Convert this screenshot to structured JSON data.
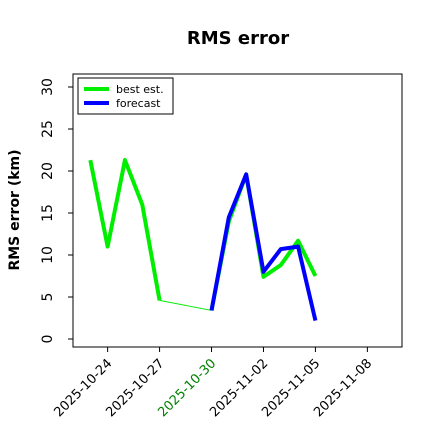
{
  "chart_data": {
    "type": "line",
    "title": "RMS error",
    "ylabel": "RMS error (km)",
    "xlabel": "",
    "ylim": [
      0,
      30
    ],
    "yticks": [
      0,
      5,
      10,
      15,
      20,
      25,
      30
    ],
    "xlim": [
      "2025-10-22",
      "2025-11-10"
    ],
    "xticks": [
      "2025-10-24",
      "2025-10-27",
      "2025-10-30",
      "2025-11-02",
      "2025-11-05",
      "2025-11-08"
    ],
    "highlight_tick": "2025-10-30",
    "highlight_color": "#008000",
    "grid": false,
    "legend_position": "top-left",
    "series": [
      {
        "name": "best est.",
        "color": "#00ee00",
        "points": [
          {
            "x": "2025-10-23",
            "y": 21.3
          },
          {
            "x": "2025-10-24",
            "y": 11.0
          },
          {
            "x": "2025-10-25",
            "y": 21.3
          },
          {
            "x": "2025-10-26",
            "y": 16.0
          },
          {
            "x": "2025-10-27",
            "y": 4.6
          },
          {
            "x": "2025-10-30",
            "y": 3.4
          },
          {
            "x": "2025-10-31",
            "y": 14.0
          },
          {
            "x": "2025-11-01",
            "y": 19.6
          },
          {
            "x": "2025-11-02",
            "y": 7.4
          },
          {
            "x": "2025-11-03",
            "y": 8.8
          },
          {
            "x": "2025-11-04",
            "y": 11.7
          },
          {
            "x": "2025-11-05",
            "y": 7.5
          }
        ],
        "thin_segments": [
          [
            4,
            5
          ]
        ]
      },
      {
        "name": "forecast",
        "color": "#0000ff",
        "points": [
          {
            "x": "2025-10-30",
            "y": 3.4
          },
          {
            "x": "2025-10-31",
            "y": 14.5
          },
          {
            "x": "2025-11-01",
            "y": 19.6
          },
          {
            "x": "2025-11-02",
            "y": 8.0
          },
          {
            "x": "2025-11-03",
            "y": 10.7
          },
          {
            "x": "2025-11-04",
            "y": 11.0
          },
          {
            "x": "2025-11-05",
            "y": 2.2
          }
        ]
      }
    ]
  }
}
